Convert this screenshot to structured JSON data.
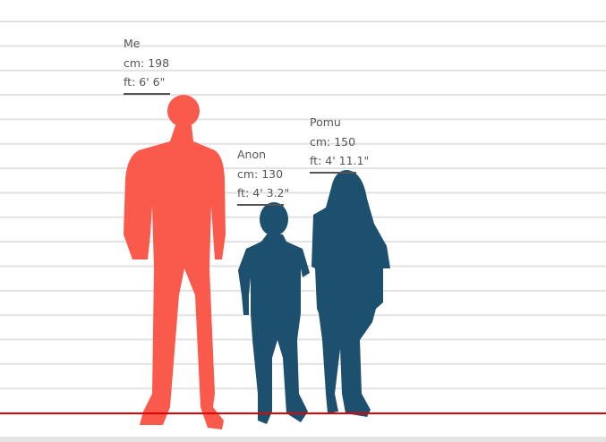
{
  "chart_data": {
    "type": "height-comparison",
    "unit": "cm",
    "people": [
      {
        "name": "Me",
        "cm": 198,
        "cm_label": "cm: 198",
        "ft_label": "ft: 6' 6\"",
        "color": "#f95a4c"
      },
      {
        "name": "Anon",
        "cm": 130,
        "cm_label": "cm: 130",
        "ft_label": "ft: 4' 3.2\"",
        "color": "#1d4f6e"
      },
      {
        "name": "Pomu",
        "cm": 150,
        "cm_label": "cm: 150",
        "ft_label": "ft: 4' 11.1\"",
        "color": "#1d4f6e"
      }
    ],
    "grid": true,
    "baseline_color": "#e00000"
  }
}
